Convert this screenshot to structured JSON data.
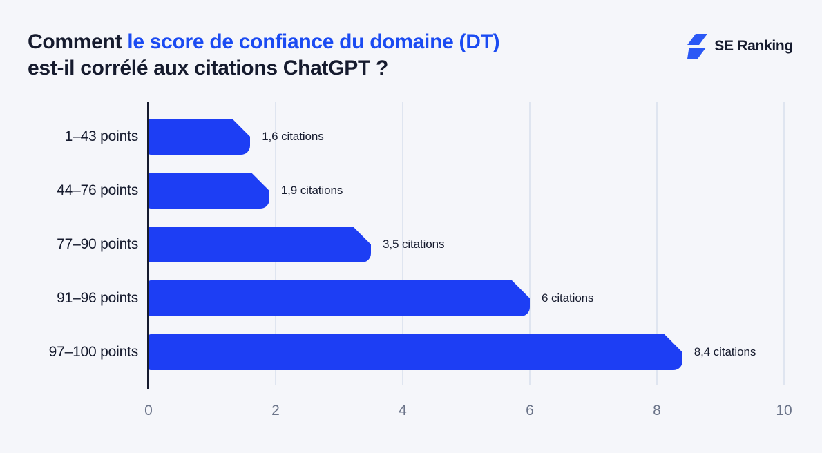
{
  "header": {
    "title": {
      "part1": "Comment",
      "highlight": "le score de confiance du domaine (DT)",
      "line2": "est-il corrélé aux citations ChatGPT ?"
    },
    "logo": {
      "text": "SE Ranking",
      "icon": "lightning-bolt-icon"
    }
  },
  "colors": {
    "background": "#f5f6fa",
    "bar_blue": "#1d3ef4",
    "accent_blue": "#1b4bf2",
    "logo_blue": "#2b58f5",
    "dark_text": "#161b2e",
    "axis_line": "#161b2e",
    "gridline": "#dfe5f0",
    "tick_text": "#6b7489"
  },
  "chart_data": {
    "type": "bar",
    "orientation": "horizontal",
    "title": "Comment le score de confiance du domaine (DT) est-il corrélé aux citations ChatGPT ?",
    "categories": [
      "1–43 points",
      "44–76 points",
      "77–90 points",
      "91–96 points",
      "97–100 points"
    ],
    "values": [
      1.6,
      1.9,
      3.5,
      6,
      8.4
    ],
    "value_labels": [
      "1,6 citations",
      "1,9 citations",
      "3,5 citations",
      "6 citations",
      "8,4 citations"
    ],
    "x_ticks": [
      "0",
      "2",
      "4",
      "6",
      "8",
      "10"
    ],
    "x_tick_values": [
      0,
      2,
      4,
      6,
      8,
      10
    ],
    "xlim": [
      0,
      10
    ],
    "xlabel": "",
    "ylabel": "",
    "legend": null,
    "grid": "vertical-light",
    "bar_end_style": "chamfered-top-right, rounded-bottom-right"
  }
}
